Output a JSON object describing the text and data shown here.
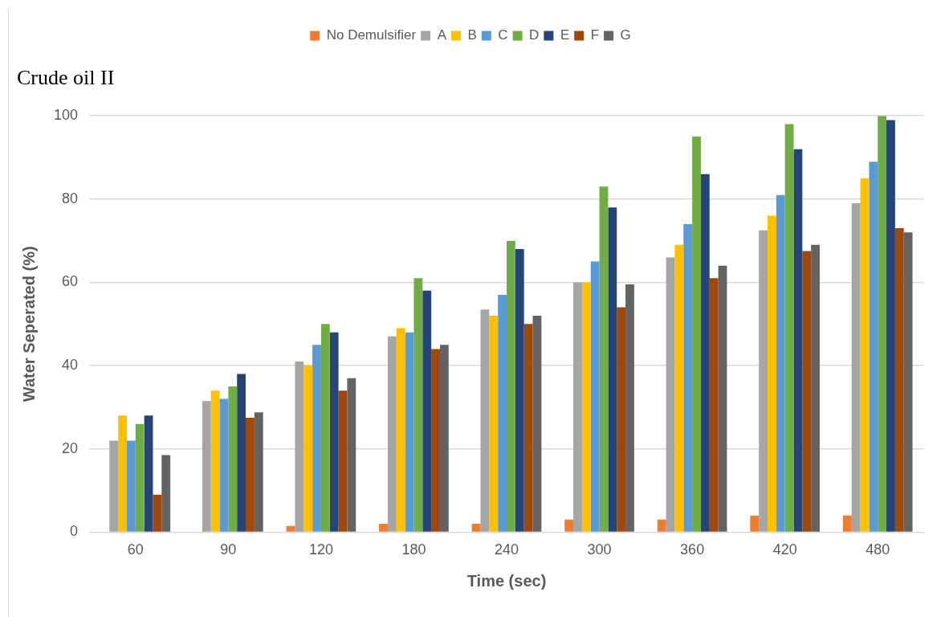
{
  "chart_data": {
    "type": "bar",
    "title": "Crude oil II",
    "xlabel": "Time (sec)",
    "ylabel": "Water Seperated (%)",
    "categories": [
      "60",
      "90",
      "120",
      "180",
      "240",
      "300",
      "360",
      "420",
      "480"
    ],
    "series": [
      {
        "name": "No Demulsifier",
        "color": "#ed7d31",
        "values": [
          0,
          0,
          1.5,
          2,
          2,
          3,
          3,
          4,
          4
        ]
      },
      {
        "name": "A",
        "color": "#a5a5a5",
        "values": [
          22,
          31.5,
          41,
          47,
          53.5,
          60,
          66,
          72.5,
          79
        ]
      },
      {
        "name": "B",
        "color": "#ffc000",
        "values": [
          28,
          34,
          40,
          49,
          52,
          60,
          69,
          76,
          85
        ]
      },
      {
        "name": "C",
        "color": "#5b9bd5",
        "values": [
          22,
          32,
          45,
          48,
          57,
          65,
          74,
          81,
          89
        ]
      },
      {
        "name": "D",
        "color": "#70ad47",
        "values": [
          26,
          35,
          50,
          61,
          70,
          83,
          95,
          98,
          100
        ]
      },
      {
        "name": "E",
        "color": "#264478",
        "values": [
          28,
          38,
          48,
          58,
          68,
          78,
          86,
          92,
          99
        ]
      },
      {
        "name": "F",
        "color": "#9e480e",
        "values": [
          9,
          27.5,
          34,
          44,
          50,
          54,
          61,
          67.5,
          73
        ]
      },
      {
        "name": "G",
        "color": "#636363",
        "values": [
          18.5,
          28.8,
          37,
          45,
          52,
          59.5,
          64,
          69,
          72
        ]
      }
    ],
    "ylim": [
      0,
      100
    ],
    "yticks": [
      0,
      20,
      40,
      60,
      80,
      100
    ],
    "grid": "y",
    "legend": "top"
  }
}
